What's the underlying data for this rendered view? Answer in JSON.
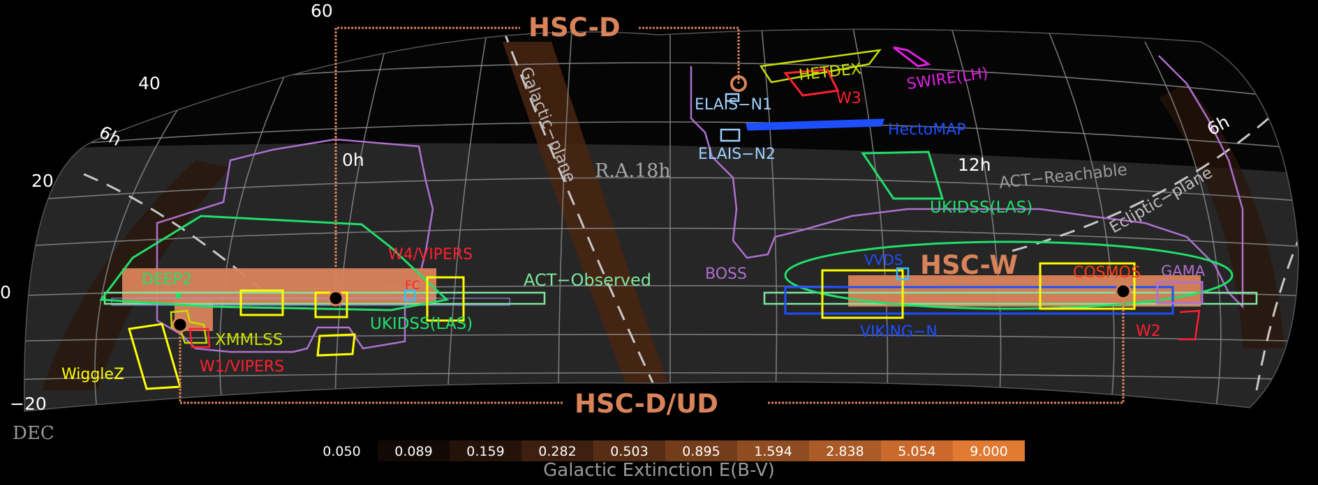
{
  "colors": {
    "background": "#000000",
    "sky_dark": "#050505",
    "act_band": "#262626",
    "grid": "#8a8a8a",
    "hsc": "#d9835a",
    "green": "#22e06a",
    "yellow": "#ffff00",
    "purple": "#b070d0",
    "blue": "#1e4fff",
    "light_blue": "#9fd0ff",
    "red": "#ff2030",
    "magenta": "#e020e0",
    "lime": "#c8e000",
    "mint": "#7fe6a0",
    "orange_red": "#ff3a10"
  },
  "axes": {
    "dec_ticks": [
      "60",
      "40",
      "20",
      "0",
      "−20"
    ],
    "ra_ticks": [
      "6h",
      "0h",
      "R.A.18h",
      "12h",
      "6h"
    ],
    "dec_label": "DEC"
  },
  "lines": {
    "galactic_plane": "Galactic−plane",
    "ecliptic_plane": "Ecliptic−plane",
    "act_reachable": "ACT−Reachable",
    "act_observed": "ACT−Observed"
  },
  "hsc_labels": {
    "deep": "HSC-D",
    "wide": "HSC-W",
    "deep_ultradeep": "HSC-D/UD"
  },
  "surveys": {
    "elais_n1": "ELAIS−N1",
    "elais_n2": "ELAIS−N2",
    "hetdex": "HETDEX",
    "w3": "W3",
    "swire_lh": "SWIRE(LH)",
    "hectomap": "HectoMAP",
    "ukidss_las_north": "UKIDSS(LAS)",
    "ukidss_las_south": "UKIDSS(LAS)",
    "boss": "BOSS",
    "vvds": "VVDS",
    "cosmos": "COSMOS",
    "gama": "GAMA",
    "viking_n": "VIKING−N",
    "w2": "W2",
    "deep2": "DEEP2",
    "w4_vipers": "W4/VIPERS",
    "fc": "FC",
    "xmmlss": "XMMLSS",
    "wigglez": "WiggleZ",
    "w1_vipers": "W1/VIPERS"
  },
  "colorbar": {
    "values": [
      "0.050",
      "0.089",
      "0.159",
      "0.282",
      "0.503",
      "0.895",
      "1.594",
      "2.838",
      "5.054",
      "9.000"
    ],
    "colors": [
      "#000000",
      "#120905",
      "#25130a",
      "#3d200f",
      "#572e15",
      "#733d1b",
      "#8f4c21",
      "#ab5b27",
      "#c96a2c",
      "#e07a33"
    ],
    "title": "Galactic Extinction E(B-V)"
  }
}
